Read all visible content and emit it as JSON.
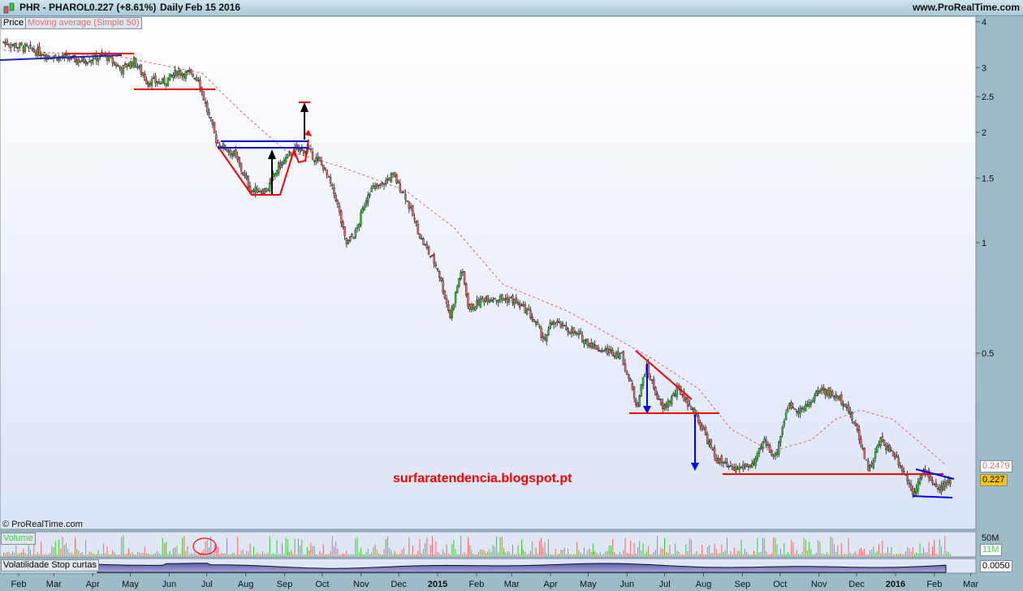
{
  "header": {
    "symbol": "PHR - PHAROL",
    "quote": "0.227 (+8.61%)",
    "period": "Daily",
    "date": "Feb 15 2016",
    "site": "www.ProRealTime.com"
  },
  "legend": {
    "price": "Price",
    "ma": "Moving average (Simple 50)"
  },
  "copyright": "© ProRealTime.com",
  "watermark": "surfaratendencia.blogspot.pt",
  "volume": {
    "label": "Volume",
    "scale_top": "50M",
    "current": "11M"
  },
  "volatility": {
    "label": "Volatilidade Stop curtas",
    "current": "0.0050"
  },
  "price_tags": {
    "ma": "0.2479",
    "last": "0.227"
  },
  "colors": {
    "up": "#33cc33",
    "down": "#ee6a6a",
    "ma": "#e06060",
    "last_tag": "#f5c400",
    "trendline_red": "#ff0000",
    "trendline_blue": "#0000ff"
  },
  "chart_data": {
    "type": "candlestick",
    "yscale": "log",
    "ylim": [
      0.19,
      4.1
    ],
    "yticks": [
      "4",
      "3",
      "2.5",
      "2",
      "1.5",
      "1",
      "0.5"
    ],
    "xticks": [
      "Feb",
      "Mar",
      "Apr",
      "May",
      "Jun",
      "Jul",
      "Aug",
      "Sep",
      "Oct",
      "Nov",
      "Dec",
      "2015",
      "Feb",
      "Mar",
      "Apr",
      "May",
      "Jun",
      "Jul",
      "Aug",
      "Sep",
      "Oct",
      "Nov",
      "Dec",
      "2016",
      "Feb",
      "Mar"
    ],
    "price": [
      [
        "2014-01-20",
        3.52
      ],
      [
        "2014-02-08",
        3.38
      ],
      [
        "2014-02-25",
        3.24
      ],
      [
        "2014-03-23",
        3.13
      ],
      [
        "2014-04-11",
        3.24
      ],
      [
        "2014-04-24",
        2.97
      ],
      [
        "2014-05-04",
        3.13
      ],
      [
        "2014-05-14",
        2.76
      ],
      [
        "2014-05-27",
        2.73
      ],
      [
        "2014-06-08",
        2.93
      ],
      [
        "2014-06-24",
        2.83
      ],
      [
        "2014-06-30",
        2.37
      ],
      [
        "2014-07-09",
        1.88
      ],
      [
        "2014-07-23",
        1.74
      ],
      [
        "2014-08-05",
        1.39
      ],
      [
        "2014-08-18",
        1.39
      ],
      [
        "2014-08-27",
        1.61
      ],
      [
        "2014-09-09",
        1.79
      ],
      [
        "2014-09-19",
        1.79
      ],
      [
        "2014-10-02",
        1.61
      ],
      [
        "2014-10-12",
        1.32
      ],
      [
        "2014-10-20",
        0.99
      ],
      [
        "2014-10-28",
        1.07
      ],
      [
        "2014-11-07",
        1.39
      ],
      [
        "2014-11-16",
        1.42
      ],
      [
        "2014-11-26",
        1.53
      ],
      [
        "2014-12-06",
        1.35
      ],
      [
        "2014-12-19",
        1.02
      ],
      [
        "2015-01-01",
        0.85
      ],
      [
        "2015-01-11",
        0.63
      ],
      [
        "2015-01-20",
        0.85
      ],
      [
        "2015-01-26",
        0.66
      ],
      [
        "2015-02-09",
        0.71
      ],
      [
        "2015-03-01",
        0.7
      ],
      [
        "2015-03-14",
        0.65
      ],
      [
        "2015-03-28",
        0.54
      ],
      [
        "2015-04-02",
        0.61
      ],
      [
        "2015-04-15",
        0.58
      ],
      [
        "2015-05-11",
        0.51
      ],
      [
        "2015-05-27",
        0.5
      ],
      [
        "2015-06-09",
        0.36
      ],
      [
        "2015-06-16",
        0.46
      ],
      [
        "2015-06-29",
        0.35
      ],
      [
        "2015-07-12",
        0.4
      ],
      [
        "2015-07-28",
        0.33
      ],
      [
        "2015-08-10",
        0.26
      ],
      [
        "2015-08-23",
        0.24
      ],
      [
        "2015-09-11",
        0.25
      ],
      [
        "2015-09-18",
        0.29
      ],
      [
        "2015-09-27",
        0.26
      ],
      [
        "2015-10-07",
        0.36
      ],
      [
        "2015-10-20",
        0.35
      ],
      [
        "2015-11-02",
        0.4
      ],
      [
        "2015-11-21",
        0.37
      ],
      [
        "2015-12-01",
        0.31
      ],
      [
        "2015-12-11",
        0.24
      ],
      [
        "2015-12-20",
        0.29
      ],
      [
        "2016-01-02",
        0.26
      ],
      [
        "2016-01-15",
        0.21
      ],
      [
        "2016-01-25",
        0.24
      ],
      [
        "2016-02-04",
        0.21
      ],
      [
        "2016-02-15",
        0.227
      ]
    ],
    "ma50": [
      [
        "2014-01-20",
        3.35
      ],
      [
        "2014-04-24",
        3.21
      ],
      [
        "2014-06-27",
        2.9
      ],
      [
        "2014-07-30",
        2.25
      ],
      [
        "2014-09-01",
        1.79
      ],
      [
        "2014-10-16",
        1.61
      ],
      [
        "2014-12-06",
        1.39
      ],
      [
        "2015-01-14",
        1.1
      ],
      [
        "2015-02-22",
        0.77
      ],
      [
        "2015-04-15",
        0.65
      ],
      [
        "2015-06-18",
        0.49
      ],
      [
        "2015-07-28",
        0.4
      ],
      [
        "2015-08-23",
        0.31
      ],
      [
        "2015-09-24",
        0.27
      ],
      [
        "2015-10-26",
        0.29
      ],
      [
        "2015-11-14",
        0.33
      ],
      [
        "2015-12-04",
        0.35
      ],
      [
        "2015-12-30",
        0.33
      ],
      [
        "2016-02-10",
        0.2479
      ]
    ]
  }
}
